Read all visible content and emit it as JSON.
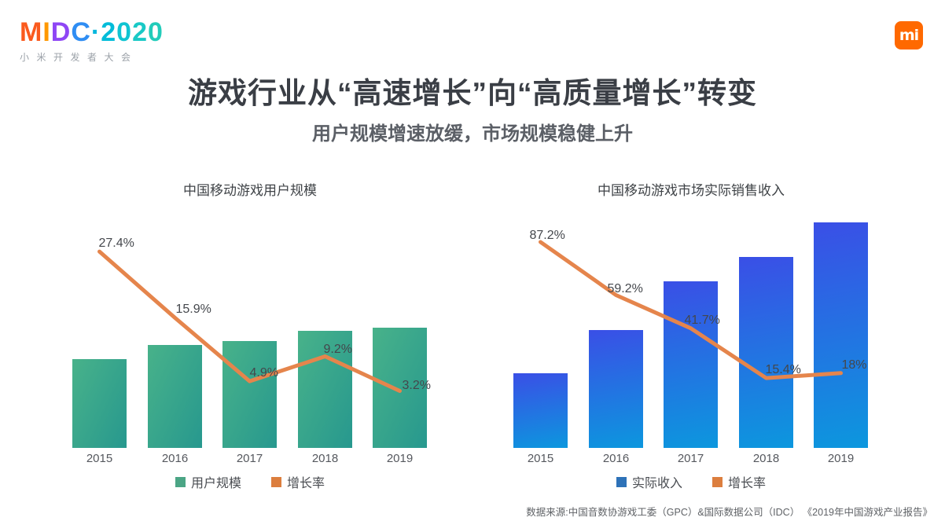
{
  "header": {
    "logo_title": "MIDC·2020",
    "logo_letter_colors": [
      "#fa5a1e",
      "#ff9800",
      "#8e46f5",
      "#2f8df3",
      "#00b7dd",
      "#00bcd9",
      "#0fc4d2",
      "#19c9c6",
      "#22ccba"
    ],
    "logo_subtitle": "小米开发者大会",
    "mi_logo_text": "mi",
    "mi_brand_color": "#ff6900"
  },
  "title": "游戏行业从“高速增长”向“高质量增长”转变",
  "subtitle": "用户规模增速放缓，市场规模稳健上升",
  "colors": {
    "growth_line": "#e5854c",
    "green_bar_from": "#48b28a",
    "green_bar_to": "#27988e",
    "blue_bar_from": "#3a4fe6",
    "blue_bar_to": "#0c97de",
    "legend_green": "#4ba585",
    "legend_blue": "#2e72b8",
    "legend_orange": "#dc7e3e"
  },
  "chart_data": [
    {
      "type": "bar+line",
      "title": "中国移动游戏用户规模",
      "categories": [
        "2015",
        "2016",
        "2017",
        "2018",
        "2019"
      ],
      "xlabel": "",
      "ylabel": "",
      "grid": false,
      "legend_position": "bottom",
      "series": [
        {
          "name": "用户规模",
          "type": "bar",
          "values_shown": false,
          "values_relative": [
            0.738,
            0.856,
            0.889,
            0.974,
            1.0
          ]
        },
        {
          "name": "增长率",
          "type": "line",
          "unit": "%",
          "values": [
            27.4,
            15.9,
            4.9,
            9.2,
            3.2
          ],
          "labels": [
            "27.4%",
            "15.9%",
            "4.9%",
            "9.2%",
            "3.2%"
          ]
        }
      ],
      "legend": [
        {
          "label": "用户规模",
          "color": "#4ba585"
        },
        {
          "label": "增长率",
          "color": "#dc7e3e"
        }
      ]
    },
    {
      "type": "bar+line",
      "title": "中国移动游戏市场实际销售收入",
      "categories": [
        "2015",
        "2016",
        "2017",
        "2018",
        "2019"
      ],
      "xlabel": "",
      "ylabel": "",
      "grid": false,
      "legend_position": "bottom",
      "series": [
        {
          "name": "实际收入",
          "type": "bar",
          "values_shown": false,
          "values_relative": [
            0.331,
            0.523,
            0.739,
            0.847,
            1.0
          ]
        },
        {
          "name": "增长率",
          "type": "line",
          "unit": "%",
          "values": [
            87.2,
            59.2,
            41.7,
            15.4,
            18
          ],
          "labels": [
            "87.2%",
            "59.2%",
            "41.7%",
            "15.4%",
            "18%"
          ]
        }
      ],
      "legend": [
        {
          "label": "实际收入",
          "color": "#2e72b8"
        },
        {
          "label": "增长率",
          "color": "#dc7e3e"
        }
      ]
    }
  ],
  "footer": {
    "source": "数据来源:中国音数协游戏工委（GPC）&国际数据公司（IDC） 《2019年中国游戏产业报告》"
  }
}
